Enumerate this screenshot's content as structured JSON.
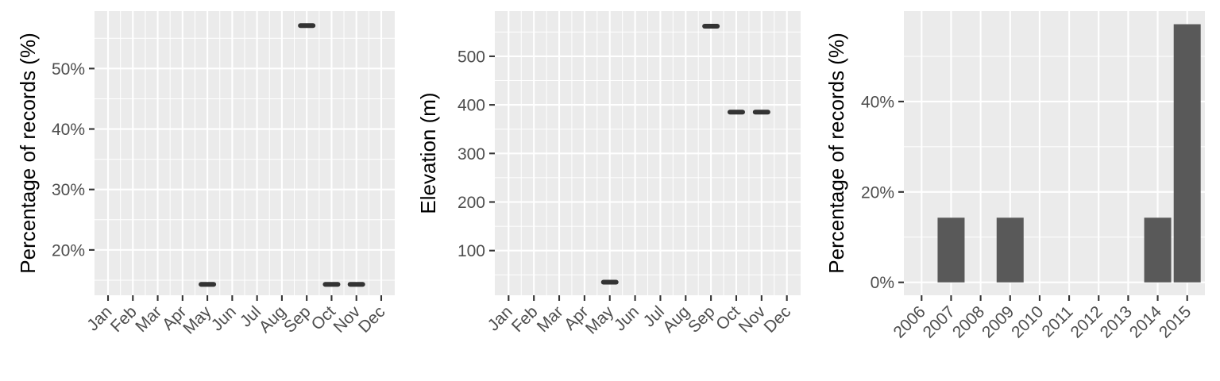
{
  "chart_data": [
    {
      "type": "line",
      "subtype": "segment",
      "ylabel": "Percentage of records (%)",
      "xlabel": "",
      "categories": [
        "Jan",
        "Feb",
        "Mar",
        "Apr",
        "May",
        "Jun",
        "Jul",
        "Aug",
        "Sep",
        "Oct",
        "Nov",
        "Dec"
      ],
      "ylim": [
        12.5,
        59.5
      ],
      "yticks": [
        20,
        30,
        40,
        50
      ],
      "ytick_labels": [
        "20%",
        "30%",
        "40%",
        "50%"
      ],
      "values": [
        null,
        null,
        null,
        null,
        14.3,
        null,
        null,
        null,
        57.1,
        14.3,
        14.3,
        null
      ],
      "grid": true
    },
    {
      "type": "line",
      "subtype": "segment",
      "ylabel": "Elevation (m)",
      "xlabel": "",
      "categories": [
        "Jan",
        "Feb",
        "Mar",
        "Apr",
        "May",
        "Jun",
        "Jul",
        "Aug",
        "Sep",
        "Oct",
        "Nov",
        "Dec"
      ],
      "ylim": [
        8,
        593
      ],
      "yticks": [
        100,
        200,
        300,
        400,
        500
      ],
      "ytick_labels": [
        "100",
        "200",
        "300",
        "400",
        "500"
      ],
      "values": [
        null,
        null,
        null,
        null,
        35,
        null,
        null,
        null,
        562,
        385,
        385,
        null
      ],
      "grid": true
    },
    {
      "type": "bar",
      "ylabel": "Percentage of records (%)",
      "xlabel": "",
      "categories": [
        "2006",
        "2007",
        "2008",
        "2009",
        "2010",
        "2011",
        "2012",
        "2013",
        "2014",
        "2015"
      ],
      "ylim": [
        -2.86,
        60
      ],
      "yticks": [
        0,
        20,
        40
      ],
      "ytick_labels": [
        "0%",
        "20%",
        "40%"
      ],
      "values": [
        0,
        14.3,
        0,
        14.3,
        0,
        0,
        0,
        0,
        14.3,
        57.1
      ],
      "grid": true
    }
  ]
}
